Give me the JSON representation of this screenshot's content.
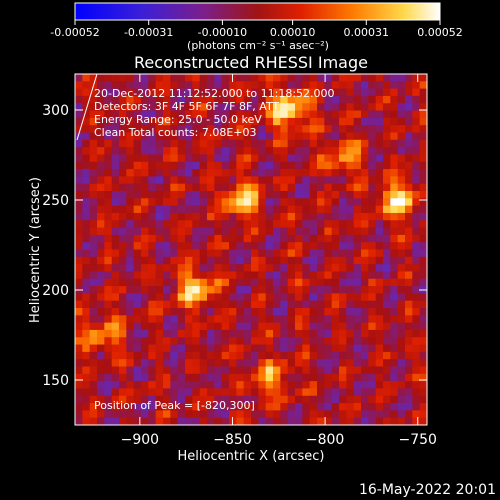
{
  "title": "Reconstructed RHESSI Image",
  "footer_timestamp": "16-May-2022 20:01",
  "colorbar": {
    "tick_labels": [
      "-0.00052",
      "-0.00031",
      "-0.00010",
      "0.00010",
      "0.00031",
      "0.00052"
    ],
    "tick_values": [
      -0.00052,
      -0.00031,
      -0.0001,
      0.0001,
      0.00031,
      0.00052
    ],
    "range": [
      -0.00052,
      0.00052
    ],
    "unit_label": "(photons cm⁻² s⁻¹ asec⁻²)",
    "colors": [
      "#0000ff",
      "#5a2dc8",
      "#7a1f8c",
      "#a81010",
      "#e02000",
      "#ff7a00",
      "#ffd84a",
      "#ffffff"
    ]
  },
  "annotations": {
    "time_range": "20-Dec-2012 11:12:52.000 to 11:18:52.000",
    "detectors": "Detectors: 3F 4F 5F 6F 7F 8F, ATT",
    "energy_range": "Energy Range: 25.0 - 50.0 keV",
    "clean_counts": "Clean  Total counts: 7.08E+03",
    "peak_position": "Position of Peak = [-820,300]"
  },
  "chart_data": {
    "type": "heatmap",
    "title": "Reconstructed RHESSI Image",
    "xlabel": "Heliocentric X (arcsec)",
    "ylabel": "Heliocentric Y (arcsec)",
    "xlim": [
      -935,
      -745
    ],
    "ylim": [
      125,
      320
    ],
    "x_ticks": [
      -900,
      -850,
      -800,
      -750
    ],
    "x_tick_labels": [
      "−900",
      "−850",
      "−800",
      "−750"
    ],
    "y_ticks": [
      150,
      200,
      250,
      300
    ],
    "y_tick_labels": [
      "150",
      "200",
      "250",
      "300"
    ],
    "colormap": "blue-purple-red-yellow-white",
    "peak": [
      -820,
      300
    ],
    "bright_sources": [
      {
        "x": -870,
        "y": 200,
        "intensity": 0.00045
      },
      {
        "x": -845,
        "y": 250,
        "intensity": 0.0004
      },
      {
        "x": -760,
        "y": 250,
        "intensity": 0.0005
      },
      {
        "x": -820,
        "y": 300,
        "intensity": 0.00052
      },
      {
        "x": -920,
        "y": 175,
        "intensity": 0.0003
      },
      {
        "x": -830,
        "y": 150,
        "intensity": 0.00035
      },
      {
        "x": -790,
        "y": 275,
        "intensity": 0.0003
      }
    ],
    "grid": false
  }
}
